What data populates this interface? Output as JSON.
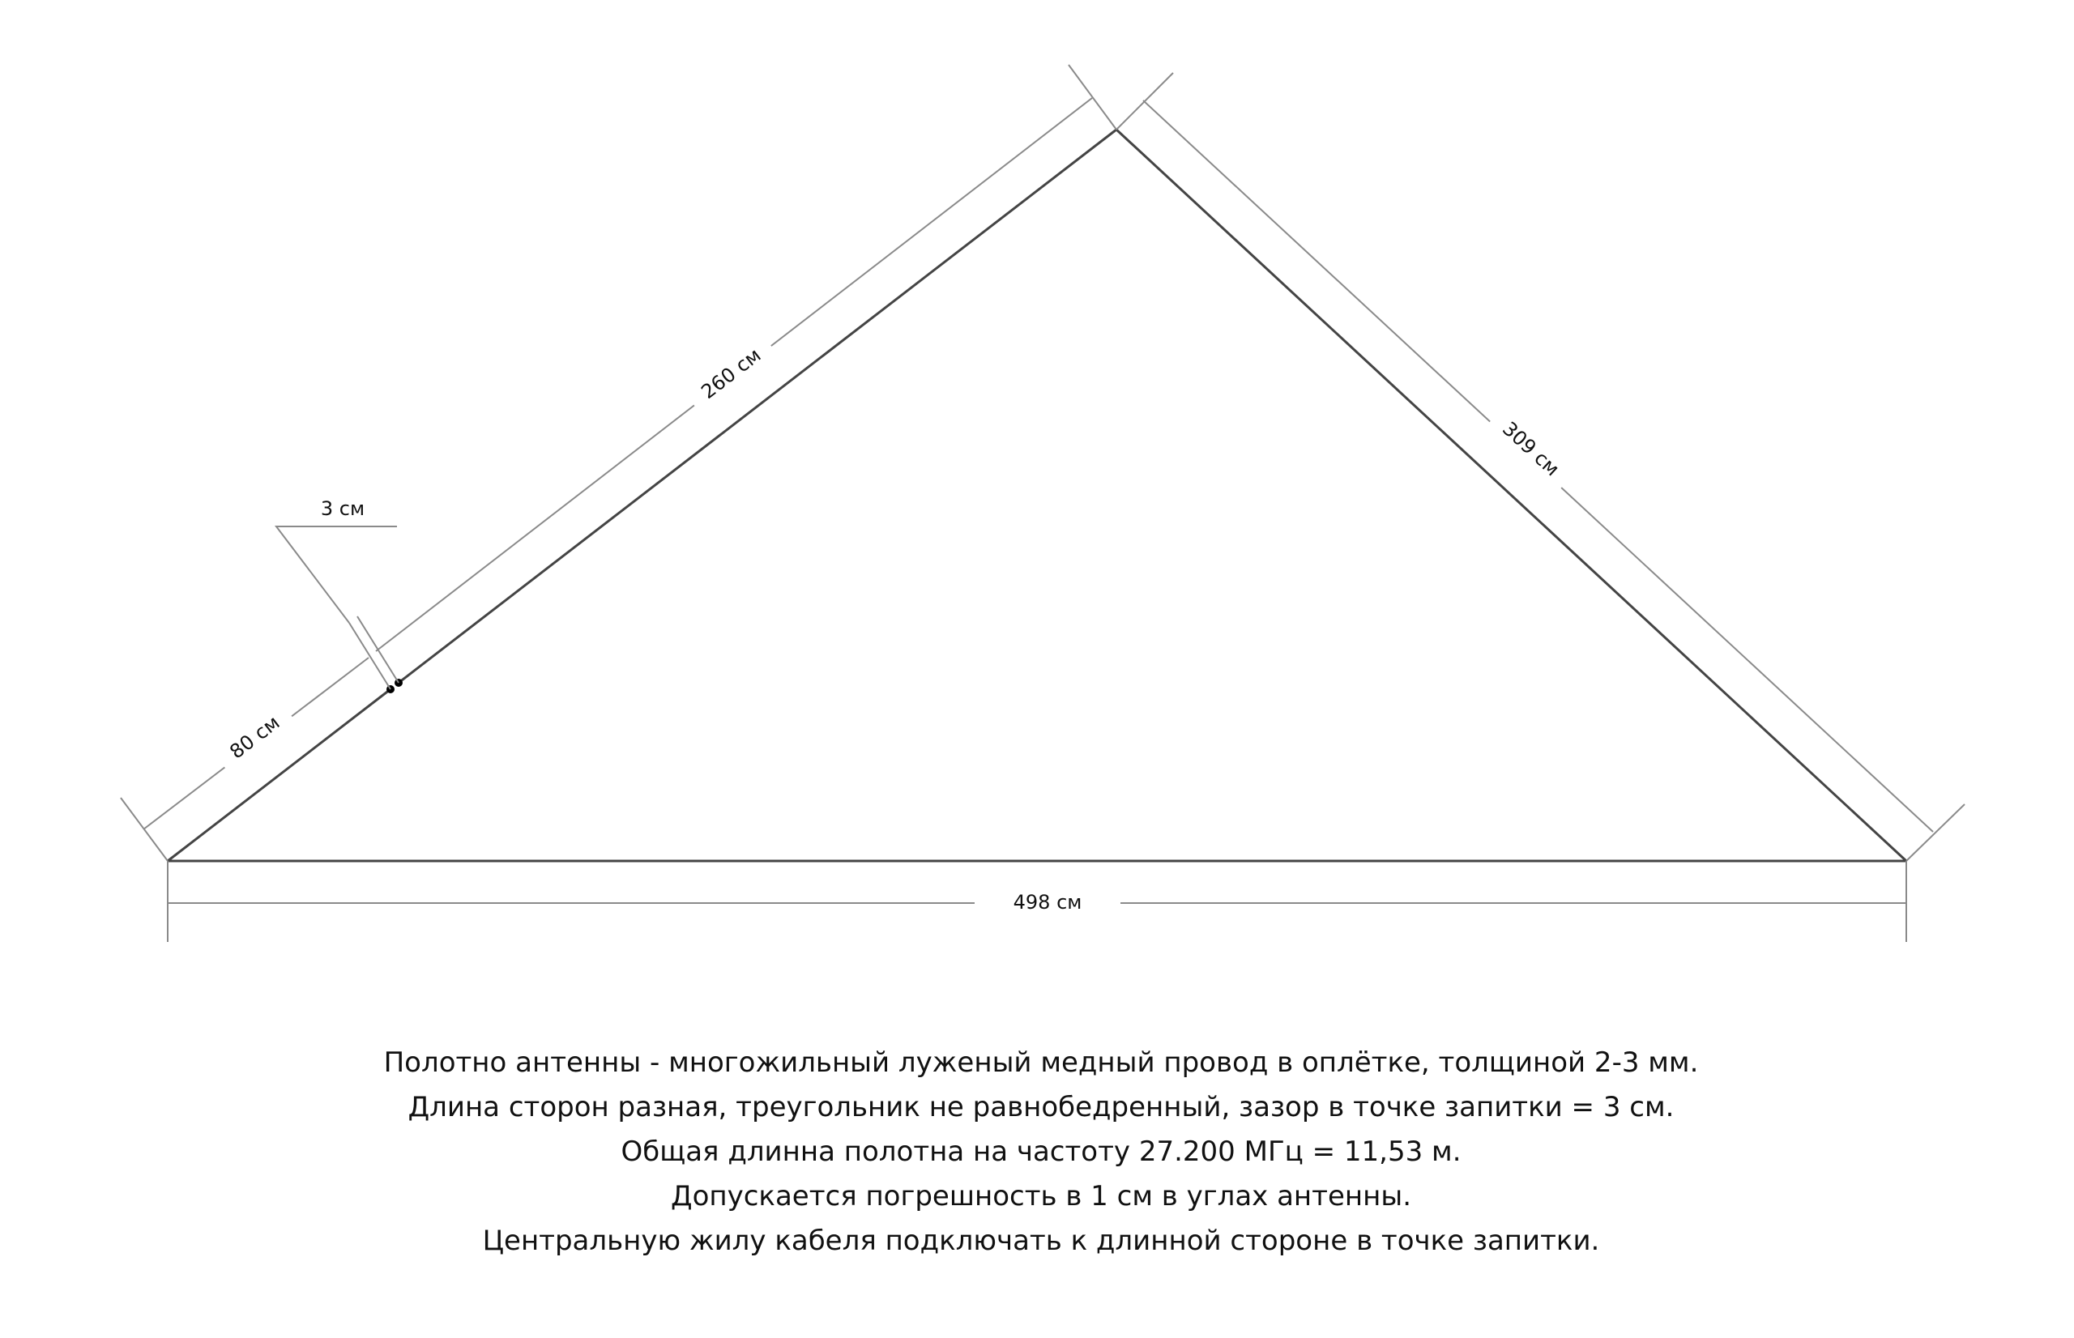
{
  "diagram": {
    "labels": {
      "side_left_upper": "260 см",
      "side_left_lower": "80 см",
      "side_right": "309 см",
      "base": "498 см",
      "gap": "3 см"
    }
  },
  "notes": [
    "Полотно антенны - многожильный луженый медный провод в оплётке, толщиной 2-3 мм.",
    "Длина сторон разная, треугольник не равнобедренный, зазор в точке запитки = 3 см.",
    "Общая длинна полотна на частоту 27.200 МГц = 11,53 м.",
    "Допускается погрешность в 1 см в углах антенны.",
    "Центральную жилу кабеля подключать к длинной стороне в точке запитки."
  ]
}
